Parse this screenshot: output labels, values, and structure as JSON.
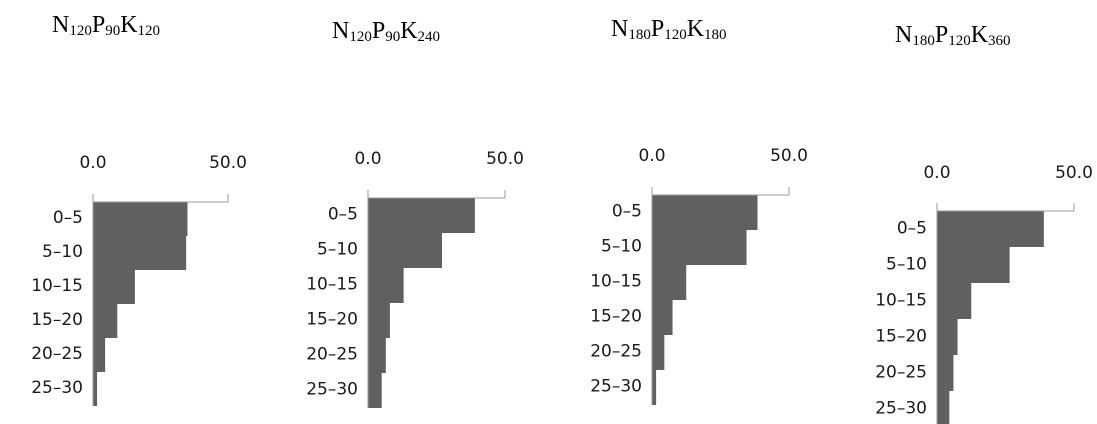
{
  "chart_data": [
    {
      "type": "bar",
      "orientation": "horizontal",
      "title": {
        "parts": [
          [
            "N",
            "120"
          ],
          [
            "P",
            "90"
          ],
          [
            "K",
            "120"
          ]
        ]
      },
      "categories": [
        "0–5",
        "5–10",
        "10–15",
        "15–20",
        "20–25",
        "25–30"
      ],
      "values": [
        35.0,
        34.5,
        15.5,
        9.0,
        4.5,
        1.5
      ],
      "xlim": [
        0,
        50
      ],
      "xticks": [
        "0.0",
        "50.0"
      ],
      "axis_position": "top",
      "bar_color": "#606060",
      "axis_color": "#9a9a9a"
    },
    {
      "type": "bar",
      "orientation": "horizontal",
      "title": {
        "parts": [
          [
            "N",
            "120"
          ],
          [
            "P",
            "90"
          ],
          [
            "K",
            "240"
          ]
        ]
      },
      "categories": [
        "0–5",
        "5–10",
        "10–15",
        "15–20",
        "20–25",
        "25–30"
      ],
      "values": [
        39.0,
        27.0,
        13.0,
        8.0,
        6.5,
        5.0
      ],
      "xlim": [
        0,
        50
      ],
      "xticks": [
        "0.0",
        "50.0"
      ],
      "axis_position": "top",
      "bar_color": "#606060",
      "axis_color": "#9a9a9a"
    },
    {
      "type": "bar",
      "orientation": "horizontal",
      "title": {
        "parts": [
          [
            "N",
            "180"
          ],
          [
            "P",
            "120"
          ],
          [
            "K",
            "180"
          ]
        ]
      },
      "categories": [
        "0–5",
        "5–10",
        "10–15",
        "15–20",
        "20–25",
        "25–30"
      ],
      "values": [
        38.5,
        34.5,
        12.5,
        7.5,
        4.5,
        1.5
      ],
      "xlim": [
        0,
        50
      ],
      "xticks": [
        "0.0",
        "50.0"
      ],
      "axis_position": "top",
      "bar_color": "#606060",
      "axis_color": "#9a9a9a"
    },
    {
      "type": "bar",
      "orientation": "horizontal",
      "title": {
        "parts": [
          [
            "N",
            "180"
          ],
          [
            "P",
            "120"
          ],
          [
            "K",
            "360"
          ]
        ]
      },
      "categories": [
        "0–5",
        "5–10",
        "10–15",
        "15–20",
        "20–25",
        "25–30"
      ],
      "values": [
        39.0,
        26.5,
        12.5,
        7.5,
        6.0,
        4.5
      ],
      "xlim": [
        0,
        50
      ],
      "xticks": [
        "0.0",
        "50.0"
      ],
      "axis_position": "top",
      "bar_color": "#606060",
      "axis_color": "#9a9a9a"
    }
  ]
}
